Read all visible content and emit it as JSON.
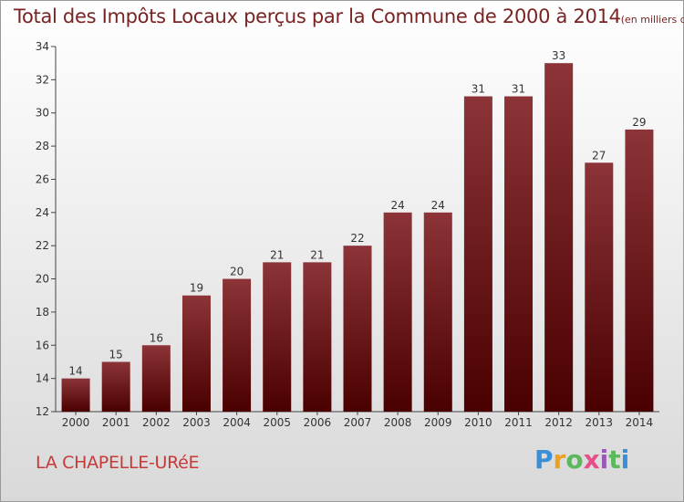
{
  "title": "Total des Impôts Locaux perçus par la Commune de 2000 à 2014",
  "title_unit": "(en milliers d'€)",
  "commune": "LA CHAPELLE-URéE",
  "brand": "Proxiti",
  "chart_data": {
    "type": "bar",
    "title": "Total des Impôts Locaux perçus par la Commune de 2000 à 2014",
    "ylabel": "en milliers d'€",
    "xlabel": "",
    "categories": [
      "2000",
      "2001",
      "2002",
      "2003",
      "2004",
      "2005",
      "2006",
      "2007",
      "2008",
      "2009",
      "2010",
      "2011",
      "2012",
      "2013",
      "2014"
    ],
    "values": [
      14,
      15,
      16,
      19,
      20,
      21,
      21,
      22,
      24,
      24,
      31,
      31,
      33,
      27,
      29
    ],
    "ylim": [
      12,
      34
    ],
    "yticks": [
      12,
      14,
      16,
      18,
      20,
      22,
      24,
      26,
      28,
      30,
      32,
      34
    ],
    "grid": false,
    "bar_color_top": "#8c3438",
    "bar_color_bottom": "#4a0000"
  }
}
